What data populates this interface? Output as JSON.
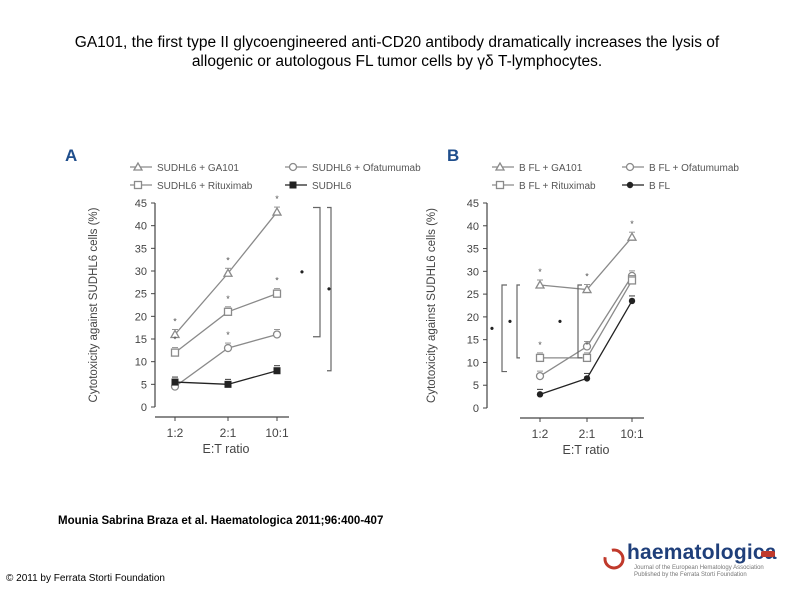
{
  "title_line1": "GA101, the first type II glycoengineered anti-CD20 antibody dramatically increases the lysis of",
  "title_line2": "allogenic or autologous FL tumor cells by γδ T-lymphocytes.",
  "citation": "Mounia Sabrina Braza et al. Haematologica 2011;96:400-407",
  "copyright": "© 2011 by Ferrata Storti Foundation",
  "logo": {
    "name": "haematologica",
    "subtitle": "Journal of the European Hematology Association Published by the Ferrata Storti Foundation"
  },
  "chart_data": [
    {
      "type": "line",
      "panel_label": "A",
      "xlabel": "E:T ratio",
      "ylabel": "Cytotoxicity against SUDHL6 cells (%)",
      "categories": [
        "1:2",
        "2:1",
        "10:1"
      ],
      "yticks": [
        0,
        5,
        10,
        15,
        20,
        25,
        30,
        35,
        40,
        45
      ],
      "ylim": [
        0,
        45
      ],
      "series": [
        {
          "name": "SUDHL6 + GA101",
          "marker": "triangle",
          "color": "#8a8a8a",
          "values": [
            16,
            29.5,
            43
          ],
          "stars": [
            "*",
            "*",
            "*"
          ]
        },
        {
          "name": "SUDHL6 + Ofatumumab",
          "marker": "circle-open",
          "color": "#8a8a8a",
          "values": [
            4.5,
            13,
            16
          ],
          "stars": [
            "",
            "*",
            ""
          ]
        },
        {
          "name": "SUDHL6 + Rituximab",
          "marker": "square-open",
          "color": "#8a8a8a",
          "values": [
            12,
            21,
            25
          ],
          "stars": [
            "*",
            "*",
            "*"
          ]
        },
        {
          "name": "SUDHL6",
          "marker": "square-filled",
          "color": "#222222",
          "values": [
            5.5,
            5,
            8
          ],
          "stars": [
            "",
            "",
            ""
          ]
        }
      ],
      "brackets": [
        {
          "symbol": "•",
          "from": 15.5,
          "to": 44
        },
        {
          "symbol": "•",
          "from": 8,
          "to": 44
        }
      ]
    },
    {
      "type": "line",
      "panel_label": "B",
      "xlabel": "E:T ratio",
      "ylabel": "Cytotoxicity against SUDHL6 cells (%)",
      "categories": [
        "1:2",
        "2:1",
        "10:1"
      ],
      "yticks": [
        0,
        5,
        10,
        15,
        20,
        25,
        30,
        35,
        40,
        45
      ],
      "ylim": [
        0,
        45
      ],
      "series": [
        {
          "name": "B FL + GA101",
          "marker": "triangle",
          "color": "#8a8a8a",
          "values": [
            27,
            26,
            37.5
          ],
          "stars": [
            "*",
            "*",
            "*"
          ]
        },
        {
          "name": "B FL + Ofatumumab",
          "marker": "circle-open",
          "color": "#8a8a8a",
          "values": [
            7,
            13.5,
            29
          ],
          "stars": [
            "",
            "",
            ""
          ]
        },
        {
          "name": "B FL + Rituximab",
          "marker": "square-open",
          "color": "#8a8a8a",
          "values": [
            11,
            11,
            28
          ],
          "stars": [
            "*",
            "*",
            ""
          ]
        },
        {
          "name": "B FL",
          "marker": "circle-filled",
          "color": "#222222",
          "values": [
            3,
            6.5,
            23.5
          ],
          "stars": [
            "",
            "",
            ""
          ]
        }
      ],
      "brackets": [
        {
          "symbol": "•",
          "from": 8,
          "to": 27
        },
        {
          "symbol": "•",
          "from": 11,
          "to": 27
        },
        {
          "symbol": "•",
          "from": 11,
          "to": 27
        }
      ]
    }
  ]
}
